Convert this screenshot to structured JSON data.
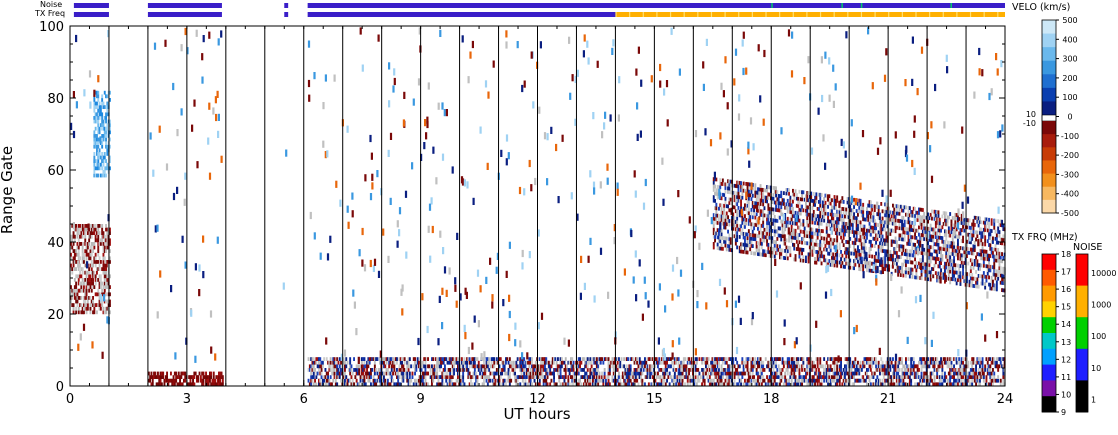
{
  "chart_data": {
    "type": "heatmap",
    "title": "",
    "xlabel": "UT hours",
    "ylabel": "Range Gate",
    "xlim": [
      0,
      24
    ],
    "ylim": [
      0,
      100
    ],
    "x_ticks": [
      0,
      3,
      6,
      9,
      12,
      15,
      18,
      21,
      24
    ],
    "y_ticks": [
      0,
      20,
      40,
      60,
      80,
      100
    ],
    "grid": "vertical lines every hour",
    "hour_lines": [
      1,
      2,
      3,
      4,
      5,
      6,
      7,
      8,
      9,
      10,
      11,
      12,
      13,
      14,
      15,
      16,
      17,
      18,
      19,
      20,
      21,
      22,
      23
    ],
    "status_bars": {
      "noise_label": "Noise",
      "txfreq_label": "TX Freq",
      "segments": [
        [
          0.1,
          1.0
        ],
        [
          2.0,
          3.9
        ],
        [
          5.5,
          5.6
        ],
        [
          6.1,
          24.0
        ]
      ],
      "tx_orange_start": 14.0,
      "colors": {
        "bar": "#3a1ec8",
        "orange": "#ffb000",
        "green": "#00cc66"
      }
    },
    "velocity_colorbar": {
      "title": "VELO (km/s)",
      "labels": [
        "500",
        "400",
        "300",
        "200",
        "100",
        "0",
        "-100",
        "-200",
        "-300",
        "-400",
        "-500"
      ],
      "extra_labels": [
        "10",
        "-10"
      ],
      "colors": [
        "#cde8f7",
        "#9fd2f3",
        "#6ab8ec",
        "#3a98e0",
        "#1f6fd0",
        "#0a3fb0",
        "#0a1e80",
        "#7a0808",
        "#a81c0c",
        "#c83c06",
        "#e8660a",
        "#f2901c",
        "#f7b860",
        "#fbd8a8"
      ]
    },
    "txfreq_colorbar": {
      "title": "TX FRQ (MHz)",
      "labels": [
        "18",
        "17",
        "16",
        "15",
        "14",
        "13",
        "12",
        "11",
        "10",
        "9"
      ],
      "colors": [
        "#ff0000",
        "#ff5a00",
        "#ff9a00",
        "#ffd200",
        "#00d000",
        "#00c8c8",
        "#00a0ff",
        "#1e1eff",
        "#7a10a8",
        "#000000"
      ]
    },
    "noise_colorbar": {
      "title": "NOISE",
      "labels": [
        "10000",
        "1000",
        "100",
        "10",
        "1"
      ],
      "colors": [
        "#ff0000",
        "#ffb000",
        "#00d000",
        "#1e1eff",
        "#000000"
      ]
    },
    "features": [
      {
        "name": "near-range backscatter band",
        "t": [
          6.1,
          24.0
        ],
        "gates": [
          0,
          8
        ],
        "mix": [
          "red",
          "blue",
          "grey"
        ]
      },
      {
        "name": "near-range band early",
        "t": [
          2.0,
          3.9
        ],
        "gates": [
          0,
          4
        ],
        "mix": [
          "red"
        ]
      },
      {
        "name": "ground scatter band",
        "t": [
          16.5,
          24.0
        ],
        "gates": [
          30,
          55
        ],
        "mix": [
          "grey",
          "blue",
          "red"
        ]
      },
      {
        "name": "fast positive velocity patch",
        "t": [
          0.6,
          1.0
        ],
        "gates": [
          58,
          82
        ],
        "mix": [
          "lightblue"
        ]
      },
      {
        "name": "negative velocity patch",
        "t": [
          0.0,
          1.0
        ],
        "gates": [
          20,
          45
        ],
        "mix": [
          "red",
          "grey"
        ]
      }
    ]
  }
}
